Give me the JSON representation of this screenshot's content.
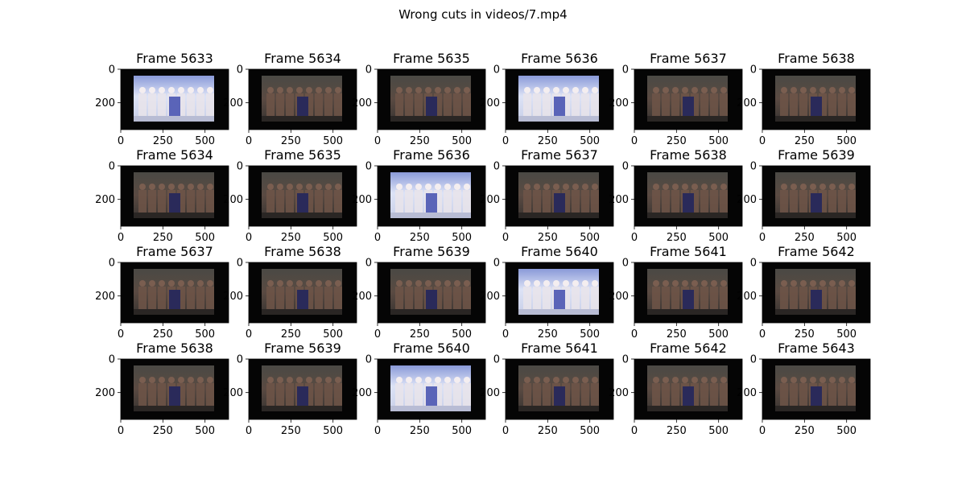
{
  "figure": {
    "title": "Wrong cuts in videos/7.mp4"
  },
  "chart_data": {
    "type": "image-grid",
    "rows": 4,
    "cols": 6,
    "image_width": 640,
    "image_height": 360,
    "x_ticks": [
      0,
      250,
      500
    ],
    "y_ticks": [
      0,
      200
    ],
    "panels": [
      {
        "title": "Frame 5633",
        "tone": "bright"
      },
      {
        "title": "Frame 5634",
        "tone": "dark"
      },
      {
        "title": "Frame 5635",
        "tone": "dark"
      },
      {
        "title": "Frame 5636",
        "tone": "bright"
      },
      {
        "title": "Frame 5637",
        "tone": "dark"
      },
      {
        "title": "Frame 5638",
        "tone": "dark"
      },
      {
        "title": "Frame 5634",
        "tone": "dark"
      },
      {
        "title": "Frame 5635",
        "tone": "dark"
      },
      {
        "title": "Frame 5636",
        "tone": "bright"
      },
      {
        "title": "Frame 5637",
        "tone": "dark"
      },
      {
        "title": "Frame 5638",
        "tone": "dark"
      },
      {
        "title": "Frame 5639",
        "tone": "dark"
      },
      {
        "title": "Frame 5637",
        "tone": "dark"
      },
      {
        "title": "Frame 5638",
        "tone": "dark"
      },
      {
        "title": "Frame 5639",
        "tone": "dark"
      },
      {
        "title": "Frame 5640",
        "tone": "bright"
      },
      {
        "title": "Frame 5641",
        "tone": "dark"
      },
      {
        "title": "Frame 5642",
        "tone": "dark"
      },
      {
        "title": "Frame 5638",
        "tone": "dark"
      },
      {
        "title": "Frame 5639",
        "tone": "dark"
      },
      {
        "title": "Frame 5640",
        "tone": "bright"
      },
      {
        "title": "Frame 5641",
        "tone": "dark"
      },
      {
        "title": "Frame 5642",
        "tone": "dark"
      },
      {
        "title": "Frame 5643",
        "tone": "dark"
      }
    ]
  }
}
